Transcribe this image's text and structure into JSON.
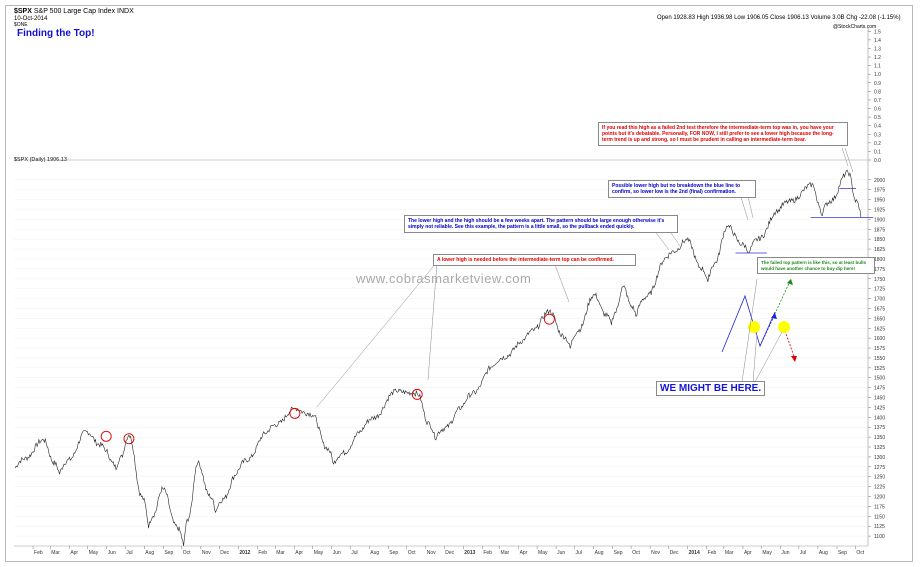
{
  "header": {
    "symbol": "$SPX",
    "name": "S&P 500 Large Cap Index",
    "exchange": "INDX",
    "date": "10-Oct-2014",
    "open": "Open 1928.83",
    "high": "High 1936.98",
    "low": "Low 1906.05",
    "close": "Close 1906.13",
    "volume": "Volume 3.0B",
    "chg": "Chg -22.08 (-1.15%)",
    "watermark_small": "@StockCharts.com",
    "upper_tag": "$ONE",
    "series_label": "$SPX (Daily) 1906.13"
  },
  "chart_data": [
    {
      "type": "line",
      "title": "Finding the Top!",
      "xlabel": "",
      "ylabel": "",
      "ylim": [
        0.0,
        1.55
      ],
      "yticks": [
        0.0,
        0.1,
        0.2,
        0.3,
        0.4,
        0.5,
        0.6,
        0.7,
        0.8,
        0.9,
        1.0,
        1.1,
        1.2,
        1.3,
        1.4,
        1.5
      ],
      "series": []
    },
    {
      "type": "line",
      "xlabel": "",
      "ylabel": "",
      "ylim": [
        1075,
        2050
      ],
      "yticks": [
        1100,
        1125,
        1150,
        1175,
        1200,
        1225,
        1250,
        1275,
        1300,
        1325,
        1350,
        1375,
        1400,
        1425,
        1450,
        1475,
        1500,
        1525,
        1550,
        1575,
        1600,
        1625,
        1650,
        1675,
        1700,
        1725,
        1750,
        1775,
        1800,
        1825,
        1850,
        1875,
        1900,
        1925,
        1950,
        1975,
        2000
      ],
      "xticks": [
        "Feb",
        "Mar",
        "Apr",
        "May",
        "Jun",
        "Jul",
        "Aug",
        "Sep",
        "Oct",
        "Nov",
        "Dec",
        "2012",
        "Feb",
        "Mar",
        "Apr",
        "May",
        "Jun",
        "Jul",
        "Aug",
        "Sep",
        "Oct",
        "Nov",
        "Dec",
        "2013",
        "Feb",
        "Mar",
        "Apr",
        "May",
        "Jun",
        "Jul",
        "Aug",
        "Sep",
        "Oct",
        "Nov",
        "Dec",
        "2014",
        "Feb",
        "Mar",
        "Apr",
        "May",
        "Jun",
        "Jul",
        "Aug",
        "Sep",
        "Oct",
        "Nov"
      ],
      "series": [
        {
          "x": [
            "2011-01-03",
            "2011-02-18",
            "2011-03-16",
            "2011-04-29",
            "2011-05-31",
            "2011-06-16",
            "2011-07-07",
            "2011-08-08",
            "2011-08-31",
            "2011-10-04",
            "2011-10-27",
            "2011-11-25",
            "2011-12-30",
            "2012-02-17",
            "2012-04-02",
            "2012-05-01",
            "2012-06-04",
            "2012-07-20",
            "2012-09-14",
            "2012-10-18",
            "2012-11-16",
            "2012-12-31",
            "2013-02-19",
            "2013-04-11",
            "2013-05-21",
            "2013-06-24",
            "2013-08-02",
            "2013-08-30",
            "2013-09-18",
            "2013-10-09",
            "2013-11-29",
            "2013-12-31",
            "2014-02-03",
            "2014-03-07",
            "2014-04-11",
            "2014-05-29",
            "2014-07-24",
            "2014-08-07",
            "2014-09-19",
            "2014-10-10"
          ],
          "y": [
            1272,
            1343,
            1256,
            1364,
            1315,
            1268,
            1355,
            1120,
            1220,
            1075,
            1285,
            1160,
            1258,
            1362,
            1422,
            1405,
            1282,
            1365,
            1466,
            1460,
            1345,
            1426,
            1530,
            1595,
            1668,
            1574,
            1710,
            1633,
            1730,
            1655,
            1805,
            1848,
            1742,
            1882,
            1815,
            1924,
            1988,
            1910,
            2019,
            1906
          ]
        }
      ],
      "annotations": [
        "If you read this high as a failed 2nd test therefore the intermediate-term top was in, you have your points but it's debatable. Personally, FOR NOW, I still prefer to see a lower high because the long-term trend is up and strong, so I must be prudent in calling an intermediate-term bear.",
        "Possible lower high but no breakdown the blue line to confirm, so lower low is the 2nd (final) confirmation.",
        "The lower high and the high should be a few weeks apart. The pattern should be large enough otherwise it's simply not reliable. See this example, the pattern is a little small, so the pullback ended quickly.",
        "A lower high is needed before the intermediate-term top can be confirmed.",
        "The failed top pattern is like this, so at least bulls would have another chance to buy dip here!",
        "WE MIGHT BE HERE.",
        "www.cobrasmarketview.com"
      ]
    }
  ],
  "colors": {
    "price_line": "#222222",
    "annotation_red": "#e00000",
    "annotation_blue": "#0000c8",
    "annotation_green": "#1a8a1a",
    "highlight_yellow": "#ffff00",
    "support_line": "#3333cc"
  }
}
